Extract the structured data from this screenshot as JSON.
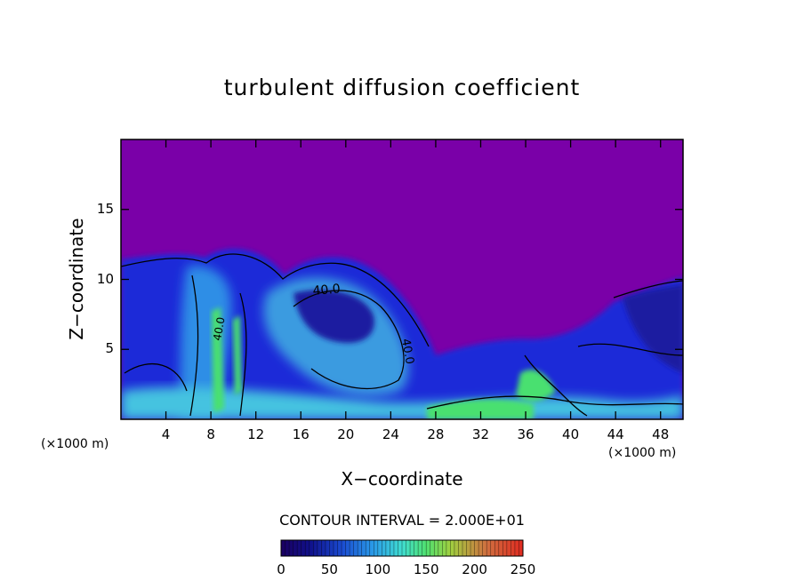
{
  "chart_data": {
    "type": "heatmap",
    "title": "turbulent diffusion coefficient",
    "xlabel": "X−coordinate",
    "ylabel": "Z−coordinate",
    "x_unit_label": "(×1000 m)",
    "xlim": [
      0,
      50
    ],
    "ylim": [
      0,
      20
    ],
    "x_ticks": [
      4,
      8,
      12,
      16,
      20,
      24,
      28,
      32,
      36,
      40,
      44,
      48
    ],
    "y_ticks": [
      5,
      10,
      15
    ],
    "contour_interval_text": "CONTOUR INTERVAL = 2.000E+01",
    "contour_labels": [
      "40.0",
      "40.0",
      "40.0"
    ],
    "colorbar": {
      "min": 0,
      "max": 250,
      "tick_values": [
        0,
        50,
        100,
        150,
        200,
        250
      ],
      "colors": [
        "#1a0060",
        "#10108a",
        "#1a4ad0",
        "#2a9ae8",
        "#40ddd0",
        "#50e070",
        "#a0d040",
        "#d07040",
        "#e02a20"
      ]
    },
    "background_color": "#7a00a8",
    "grid": false
  }
}
